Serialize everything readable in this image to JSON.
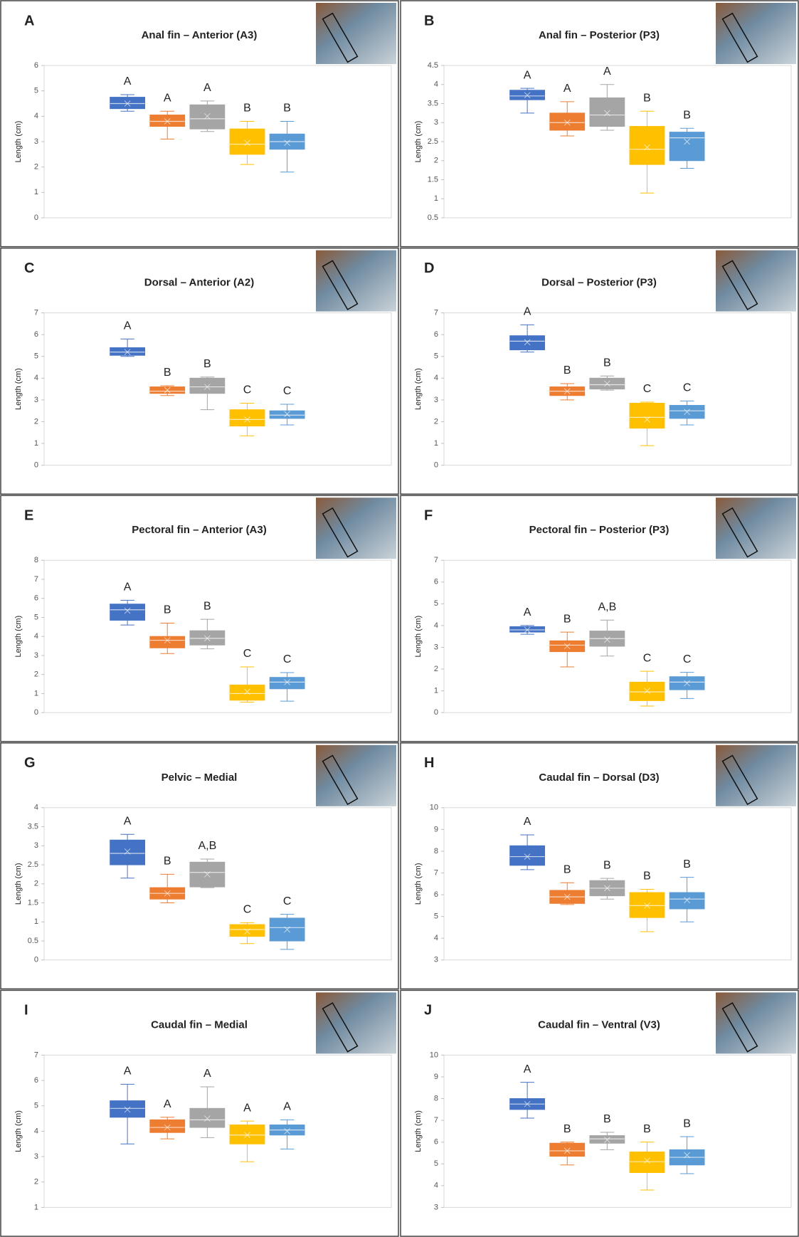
{
  "chart_data": [
    {
      "type": "box",
      "panel": "A",
      "title": "Anal fin – Anterior (A3)",
      "ylabel": "Length (cm)",
      "ylim": [
        0,
        6
      ],
      "yticks": [
        0,
        1,
        2,
        3,
        4,
        5,
        6
      ],
      "boxes": [
        {
          "color": "#4472c4",
          "min": 4.2,
          "q1": 4.3,
          "median": 4.5,
          "q3": 4.75,
          "max": 4.85,
          "mean": 4.5,
          "letter": "A"
        },
        {
          "color": "#ed7d31",
          "min": 3.1,
          "q1": 3.6,
          "median": 3.8,
          "q3": 4.05,
          "max": 4.2,
          "mean": 3.8,
          "letter": "A"
        },
        {
          "color": "#a5a5a5",
          "min": 3.4,
          "q1": 3.5,
          "median": 3.9,
          "q3": 4.45,
          "max": 4.6,
          "mean": 4.0,
          "letter": "A"
        },
        {
          "color": "#ffc000",
          "min": 2.1,
          "q1": 2.5,
          "median": 2.9,
          "q3": 3.5,
          "max": 3.8,
          "mean": 2.95,
          "letter": "B"
        },
        {
          "color": "#5b9bd5",
          "min": 1.8,
          "q1": 2.7,
          "median": 3.0,
          "q3": 3.3,
          "max": 3.8,
          "mean": 2.95,
          "letter": "B"
        }
      ]
    },
    {
      "type": "box",
      "panel": "B",
      "title": "Anal fin – Posterior (P3)",
      "ylabel": "Length (cm)",
      "ylim": [
        0.5,
        4.5
      ],
      "yticks": [
        0.5,
        1,
        1.5,
        2,
        2.5,
        3,
        3.5,
        4,
        4.5
      ],
      "boxes": [
        {
          "color": "#4472c4",
          "min": 3.25,
          "q1": 3.6,
          "median": 3.7,
          "q3": 3.85,
          "max": 3.9,
          "mean": 3.72,
          "letter": "A"
        },
        {
          "color": "#ed7d31",
          "min": 2.65,
          "q1": 2.8,
          "median": 3.0,
          "q3": 3.25,
          "max": 3.55,
          "mean": 3.0,
          "letter": "A"
        },
        {
          "color": "#a5a5a5",
          "min": 2.8,
          "q1": 2.9,
          "median": 3.2,
          "q3": 3.65,
          "max": 4.0,
          "mean": 3.25,
          "letter": "A"
        },
        {
          "color": "#ffc000",
          "min": 1.15,
          "q1": 1.9,
          "median": 2.3,
          "q3": 2.9,
          "max": 3.3,
          "mean": 2.35,
          "letter": "B"
        },
        {
          "color": "#5b9bd5",
          "min": 1.8,
          "q1": 2.0,
          "median": 2.6,
          "q3": 2.75,
          "max": 2.85,
          "mean": 2.5,
          "letter": "B"
        }
      ]
    },
    {
      "type": "box",
      "panel": "C",
      "title": "Dorsal – Anterior (A2)",
      "ylabel": "Length (cm)",
      "ylim": [
        0,
        7
      ],
      "yticks": [
        0,
        1,
        2,
        3,
        4,
        5,
        6,
        7
      ],
      "boxes": [
        {
          "color": "#4472c4",
          "min": 5.0,
          "q1": 5.05,
          "median": 5.2,
          "q3": 5.4,
          "max": 5.8,
          "mean": 5.2,
          "letter": "A"
        },
        {
          "color": "#ed7d31",
          "min": 3.2,
          "q1": 3.3,
          "median": 3.4,
          "q3": 3.6,
          "max": 3.65,
          "mean": 3.45,
          "letter": "B"
        },
        {
          "color": "#a5a5a5",
          "min": 2.55,
          "q1": 3.3,
          "median": 3.6,
          "q3": 4.0,
          "max": 4.05,
          "mean": 3.6,
          "letter": "B"
        },
        {
          "color": "#ffc000",
          "min": 1.35,
          "q1": 1.8,
          "median": 2.1,
          "q3": 2.55,
          "max": 2.85,
          "mean": 2.1,
          "letter": "C"
        },
        {
          "color": "#5b9bd5",
          "min": 1.85,
          "q1": 2.15,
          "median": 2.3,
          "q3": 2.5,
          "max": 2.8,
          "mean": 2.35,
          "letter": "C"
        }
      ]
    },
    {
      "type": "box",
      "panel": "D",
      "title": "Dorsal – Posterior (P3)",
      "ylabel": "Length (cm)",
      "ylim": [
        0,
        7
      ],
      "yticks": [
        0,
        1,
        2,
        3,
        4,
        5,
        6,
        7
      ],
      "boxes": [
        {
          "color": "#4472c4",
          "min": 5.2,
          "q1": 5.3,
          "median": 5.7,
          "q3": 5.95,
          "max": 6.45,
          "mean": 5.65,
          "letter": "A"
        },
        {
          "color": "#ed7d31",
          "min": 3.0,
          "q1": 3.2,
          "median": 3.4,
          "q3": 3.6,
          "max": 3.75,
          "mean": 3.4,
          "letter": "B"
        },
        {
          "color": "#a5a5a5",
          "min": 3.45,
          "q1": 3.5,
          "median": 3.7,
          "q3": 4.0,
          "max": 4.1,
          "mean": 3.75,
          "letter": "B"
        },
        {
          "color": "#ffc000",
          "min": 0.9,
          "q1": 1.7,
          "median": 2.2,
          "q3": 2.85,
          "max": 2.9,
          "mean": 2.1,
          "letter": "C"
        },
        {
          "color": "#5b9bd5",
          "min": 1.85,
          "q1": 2.15,
          "median": 2.5,
          "q3": 2.75,
          "max": 2.95,
          "mean": 2.45,
          "letter": "C"
        }
      ]
    },
    {
      "type": "box",
      "panel": "E",
      "title": "Pectoral fin – Anterior (A3)",
      "ylabel": "Length (cm)",
      "ylim": [
        0,
        8
      ],
      "yticks": [
        0,
        1,
        2,
        3,
        4,
        5,
        6,
        7,
        8
      ],
      "boxes": [
        {
          "color": "#4472c4",
          "min": 4.6,
          "q1": 4.85,
          "median": 5.4,
          "q3": 5.7,
          "max": 5.9,
          "mean": 5.35,
          "letter": "A"
        },
        {
          "color": "#ed7d31",
          "min": 3.1,
          "q1": 3.4,
          "median": 3.8,
          "q3": 4.0,
          "max": 4.7,
          "mean": 3.8,
          "letter": "B"
        },
        {
          "color": "#a5a5a5",
          "min": 3.35,
          "q1": 3.55,
          "median": 3.9,
          "q3": 4.3,
          "max": 4.9,
          "mean": 3.9,
          "letter": "B"
        },
        {
          "color": "#ffc000",
          "min": 0.55,
          "q1": 0.65,
          "median": 1.0,
          "q3": 1.45,
          "max": 2.4,
          "mean": 1.1,
          "letter": "C"
        },
        {
          "color": "#5b9bd5",
          "min": 0.6,
          "q1": 1.25,
          "median": 1.6,
          "q3": 1.85,
          "max": 2.1,
          "mean": 1.6,
          "letter": "C"
        }
      ]
    },
    {
      "type": "box",
      "panel": "F",
      "title": "Pectoral fin – Posterior (P3)",
      "ylabel": "Length (cm)",
      "ylim": [
        0,
        7
      ],
      "yticks": [
        0,
        1,
        2,
        3,
        4,
        5,
        6,
        7
      ],
      "boxes": [
        {
          "color": "#4472c4",
          "min": 3.6,
          "q1": 3.7,
          "median": 3.8,
          "q3": 3.95,
          "max": 4.0,
          "mean": 3.8,
          "letter": "A"
        },
        {
          "color": "#ed7d31",
          "min": 2.1,
          "q1": 2.8,
          "median": 3.1,
          "q3": 3.3,
          "max": 3.7,
          "mean": 3.05,
          "letter": "B"
        },
        {
          "color": "#a5a5a5",
          "min": 2.6,
          "q1": 3.05,
          "median": 3.4,
          "q3": 3.75,
          "max": 4.25,
          "mean": 3.35,
          "letter": "A,B"
        },
        {
          "color": "#ffc000",
          "min": 0.3,
          "q1": 0.55,
          "median": 0.95,
          "q3": 1.4,
          "max": 1.9,
          "mean": 1.0,
          "letter": "C"
        },
        {
          "color": "#5b9bd5",
          "min": 0.65,
          "q1": 1.05,
          "median": 1.4,
          "q3": 1.65,
          "max": 1.85,
          "mean": 1.35,
          "letter": "C"
        }
      ]
    },
    {
      "type": "box",
      "panel": "G",
      "title": "Pelvic – Medial",
      "ylabel": "Length (cm)",
      "ylim": [
        0,
        4
      ],
      "yticks": [
        0,
        0.5,
        1,
        1.5,
        2,
        2.5,
        3,
        3.5,
        4
      ],
      "boxes": [
        {
          "color": "#4472c4",
          "min": 2.15,
          "q1": 2.5,
          "median": 2.8,
          "q3": 3.15,
          "max": 3.3,
          "mean": 2.85,
          "letter": "A"
        },
        {
          "color": "#ed7d31",
          "min": 1.5,
          "q1": 1.6,
          "median": 1.75,
          "q3": 1.9,
          "max": 2.25,
          "mean": 1.75,
          "letter": "B"
        },
        {
          "color": "#a5a5a5",
          "min": 1.9,
          "q1": 1.92,
          "median": 2.3,
          "q3": 2.57,
          "max": 2.65,
          "mean": 2.25,
          "letter": "A,B"
        },
        {
          "color": "#ffc000",
          "min": 0.43,
          "q1": 0.62,
          "median": 0.8,
          "q3": 0.93,
          "max": 0.98,
          "mean": 0.75,
          "letter": "C"
        },
        {
          "color": "#5b9bd5",
          "min": 0.28,
          "q1": 0.5,
          "median": 0.85,
          "q3": 1.1,
          "max": 1.2,
          "mean": 0.8,
          "letter": "C"
        }
      ]
    },
    {
      "type": "box",
      "panel": "H",
      "title": "Caudal fin – Dorsal (D3)",
      "ylabel": "Length (cm)",
      "ylim": [
        3,
        10
      ],
      "yticks": [
        3,
        4,
        5,
        6,
        7,
        8,
        9,
        10
      ],
      "boxes": [
        {
          "color": "#4472c4",
          "min": 7.15,
          "q1": 7.35,
          "median": 7.75,
          "q3": 8.25,
          "max": 8.75,
          "mean": 7.75,
          "letter": "A"
        },
        {
          "color": "#ed7d31",
          "min": 5.55,
          "q1": 5.6,
          "median": 5.9,
          "q3": 6.2,
          "max": 6.55,
          "mean": 5.9,
          "letter": "B"
        },
        {
          "color": "#a5a5a5",
          "min": 5.8,
          "q1": 5.95,
          "median": 6.3,
          "q3": 6.65,
          "max": 6.75,
          "mean": 6.3,
          "letter": "B"
        },
        {
          "color": "#ffc000",
          "min": 4.3,
          "q1": 4.95,
          "median": 5.5,
          "q3": 6.1,
          "max": 6.25,
          "mean": 5.5,
          "letter": "B"
        },
        {
          "color": "#5b9bd5",
          "min": 4.75,
          "q1": 5.35,
          "median": 5.8,
          "q3": 6.1,
          "max": 6.8,
          "mean": 5.75,
          "letter": "B"
        }
      ]
    },
    {
      "type": "box",
      "panel": "I",
      "title": "Caudal fin – Medial",
      "ylabel": "Length (cm)",
      "ylim": [
        1,
        7
      ],
      "yticks": [
        1,
        2,
        3,
        4,
        5,
        6,
        7
      ],
      "boxes": [
        {
          "color": "#4472c4",
          "min": 3.5,
          "q1": 4.55,
          "median": 4.9,
          "q3": 5.2,
          "max": 5.85,
          "mean": 4.85,
          "letter": "A"
        },
        {
          "color": "#ed7d31",
          "min": 3.7,
          "q1": 3.95,
          "median": 4.15,
          "q3": 4.45,
          "max": 4.55,
          "mean": 4.15,
          "letter": "A"
        },
        {
          "color": "#a5a5a5",
          "min": 3.75,
          "q1": 4.15,
          "median": 4.45,
          "q3": 4.9,
          "max": 5.75,
          "mean": 4.5,
          "letter": "A"
        },
        {
          "color": "#ffc000",
          "min": 2.8,
          "q1": 3.5,
          "median": 3.85,
          "q3": 4.25,
          "max": 4.4,
          "mean": 3.85,
          "letter": "A"
        },
        {
          "color": "#5b9bd5",
          "min": 3.3,
          "q1": 3.85,
          "median": 4.05,
          "q3": 4.25,
          "max": 4.45,
          "mean": 4.0,
          "letter": "A"
        }
      ]
    },
    {
      "type": "box",
      "panel": "J",
      "title": "Caudal fin – Ventral (V3)",
      "ylabel": "Length (cm)",
      "ylim": [
        3,
        10
      ],
      "yticks": [
        3,
        4,
        5,
        6,
        7,
        8,
        9,
        10
      ],
      "boxes": [
        {
          "color": "#4472c4",
          "min": 7.1,
          "q1": 7.5,
          "median": 7.75,
          "q3": 8.0,
          "max": 8.75,
          "mean": 7.75,
          "letter": "A"
        },
        {
          "color": "#ed7d31",
          "min": 4.95,
          "q1": 5.35,
          "median": 5.6,
          "q3": 5.95,
          "max": 6.0,
          "mean": 5.6,
          "letter": "B"
        },
        {
          "color": "#a5a5a5",
          "min": 5.65,
          "q1": 5.95,
          "median": 6.15,
          "q3": 6.3,
          "max": 6.45,
          "mean": 6.1,
          "letter": "B"
        },
        {
          "color": "#ffc000",
          "min": 3.8,
          "q1": 4.6,
          "median": 5.1,
          "q3": 5.55,
          "max": 6.0,
          "mean": 5.15,
          "letter": "B"
        },
        {
          "color": "#5b9bd5",
          "min": 4.55,
          "q1": 4.95,
          "median": 5.3,
          "q3": 5.65,
          "max": 6.25,
          "mean": 5.4,
          "letter": "B"
        }
      ]
    }
  ]
}
